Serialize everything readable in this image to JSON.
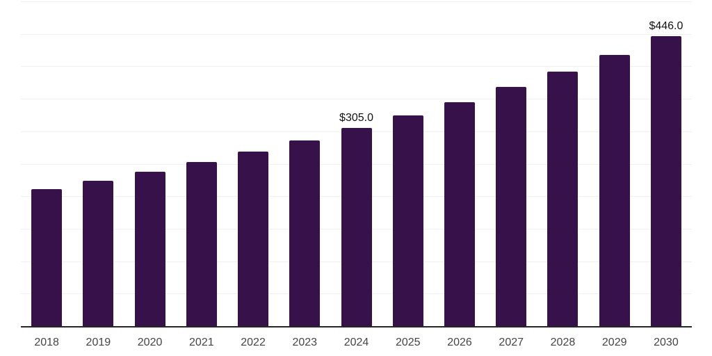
{
  "chart_data": {
    "type": "bar",
    "title": "",
    "xlabel": "",
    "ylabel": "",
    "categories": [
      "2018",
      "2019",
      "2020",
      "2021",
      "2022",
      "2023",
      "2024",
      "2025",
      "2026",
      "2027",
      "2028",
      "2029",
      "2030"
    ],
    "values": [
      211,
      224,
      238,
      253,
      269,
      286,
      305,
      324,
      345,
      368,
      392,
      418,
      446
    ],
    "data_labels": [
      "",
      "",
      "",
      "",
      "",
      "",
      "$305.0",
      "",
      "",
      "",
      "",
      "",
      "$446.0"
    ],
    "ylim": [
      0,
      500
    ],
    "gridline_step": 50,
    "grid": "horizontal-only",
    "legend_position": "none",
    "colors": {
      "bar": "#37114a",
      "gridline": "#f0f0f0",
      "axis_line": "#262626",
      "tick_label": "#444444",
      "data_label": "#111111",
      "background": "#ffffff"
    }
  }
}
